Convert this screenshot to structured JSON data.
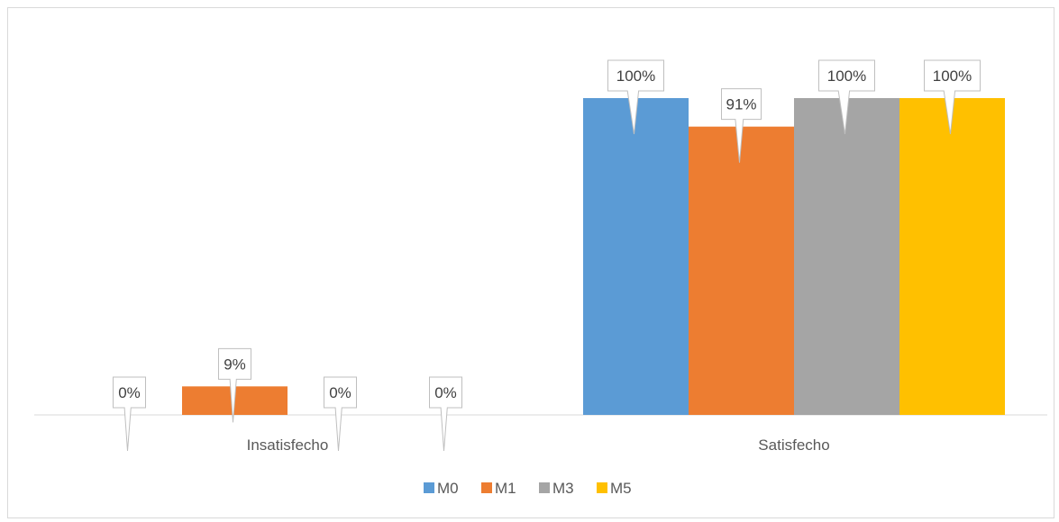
{
  "chart_data": {
    "type": "bar",
    "categories": [
      "Insatisfecho",
      "Satisfecho"
    ],
    "series": [
      {
        "name": "M0",
        "values": [
          0,
          100
        ],
        "labels": [
          "0%",
          "100%"
        ],
        "color": "#5B9BD5"
      },
      {
        "name": "M1",
        "values": [
          9,
          91
        ],
        "labels": [
          "9%",
          "91%"
        ],
        "color": "#ED7D31"
      },
      {
        "name": "M3",
        "values": [
          0,
          100
        ],
        "labels": [
          "0%",
          "100%"
        ],
        "color": "#A5A5A5"
      },
      {
        "name": "M5",
        "values": [
          0,
          100
        ],
        "labels": [
          "0%",
          "100%"
        ],
        "color": "#FFC000"
      }
    ],
    "ylim": [
      0,
      100
    ],
    "grid": false,
    "legend": "bottom",
    "axis_color": "#d9d9d9"
  }
}
